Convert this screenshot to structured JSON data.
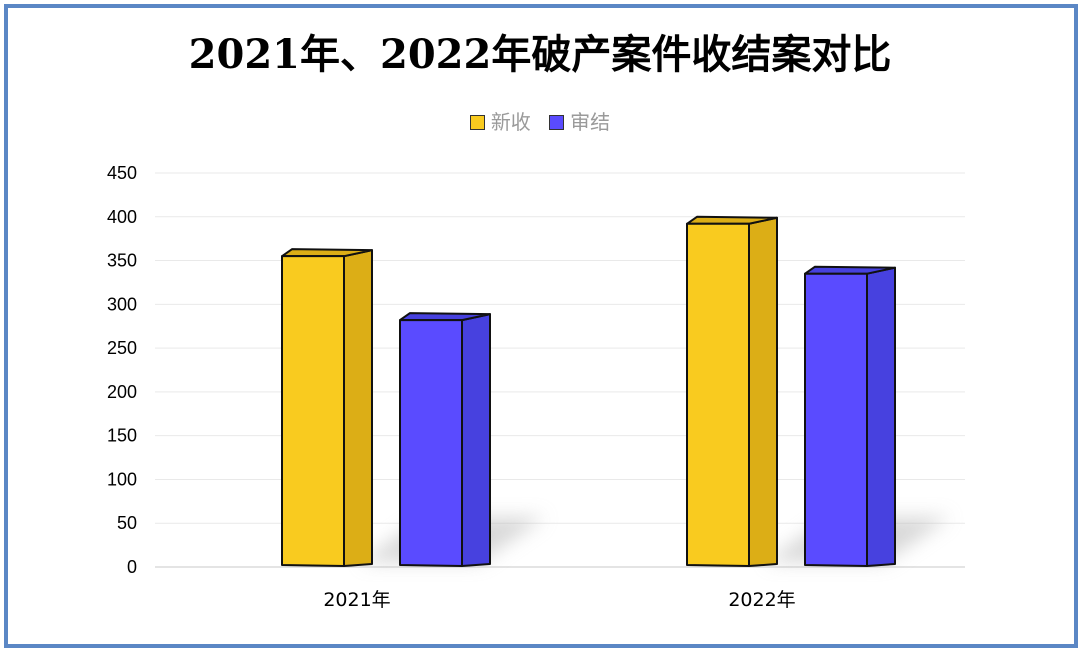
{
  "chart_data": {
    "type": "bar",
    "title": "2021年、2022年破产案件收结案对比",
    "categories": [
      "2021年",
      "2022年"
    ],
    "series": [
      {
        "name": "新收",
        "values": [
          355,
          392
        ],
        "color": "#f9cb1f",
        "side_color": "#dcae16"
      },
      {
        "name": "审结",
        "values": [
          282,
          335
        ],
        "color": "#5a4bff",
        "side_color": "#4741df"
      }
    ],
    "ylim": [
      0,
      450
    ],
    "yticks": [
      0,
      50,
      100,
      150,
      200,
      250,
      300,
      350,
      400,
      450
    ],
    "grid": true,
    "legend_position": "top-center",
    "xlabel": "",
    "ylabel": ""
  },
  "colors": {
    "frame": "#5b87c5"
  }
}
